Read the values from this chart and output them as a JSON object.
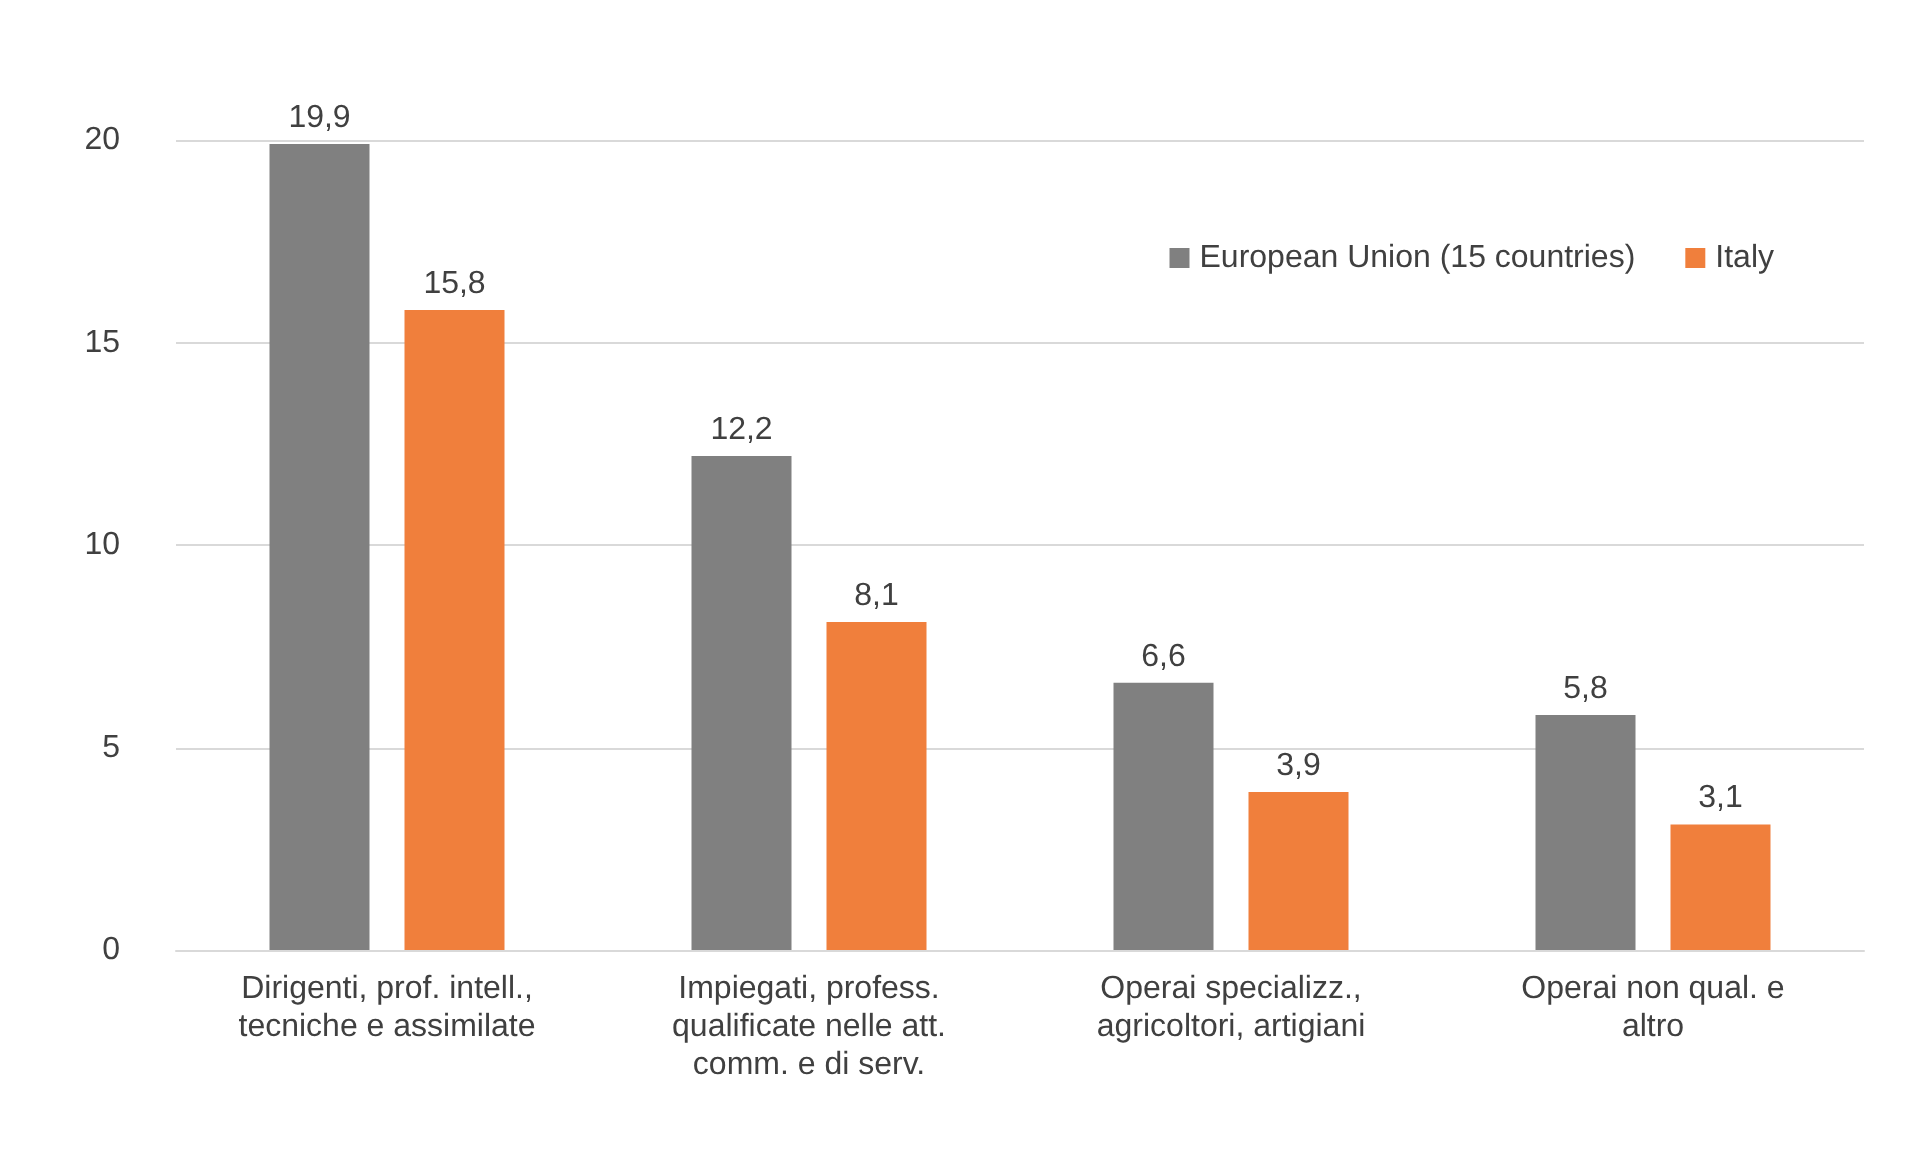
{
  "chart_data": {
    "type": "bar",
    "categories": [
      "Dirigenti, prof. intell.,\ntecniche e assimilate",
      "Impiegati, profess.\nqualificate nelle att.\ncomm. e di serv.",
      "Operai specializz.,\nagricoltori, artigiani",
      "Operai non qual. e\naltro"
    ],
    "series": [
      {
        "name": "European Union (15 countries)",
        "color": "#808080",
        "values": [
          19.9,
          12.2,
          6.6,
          5.8
        ],
        "value_labels": [
          "19,9",
          "12,2",
          "6,6",
          "5,8"
        ]
      },
      {
        "name": "Italy",
        "color": "#f07f3c",
        "values": [
          15.8,
          8.1,
          3.9,
          3.1
        ],
        "value_labels": [
          "15,8",
          "8,1",
          "3,9",
          "3,1"
        ]
      }
    ],
    "ylim": [
      0,
      20
    ],
    "yticks": [
      0,
      5,
      10,
      15,
      20
    ],
    "grid": "y",
    "legend": "top right"
  }
}
